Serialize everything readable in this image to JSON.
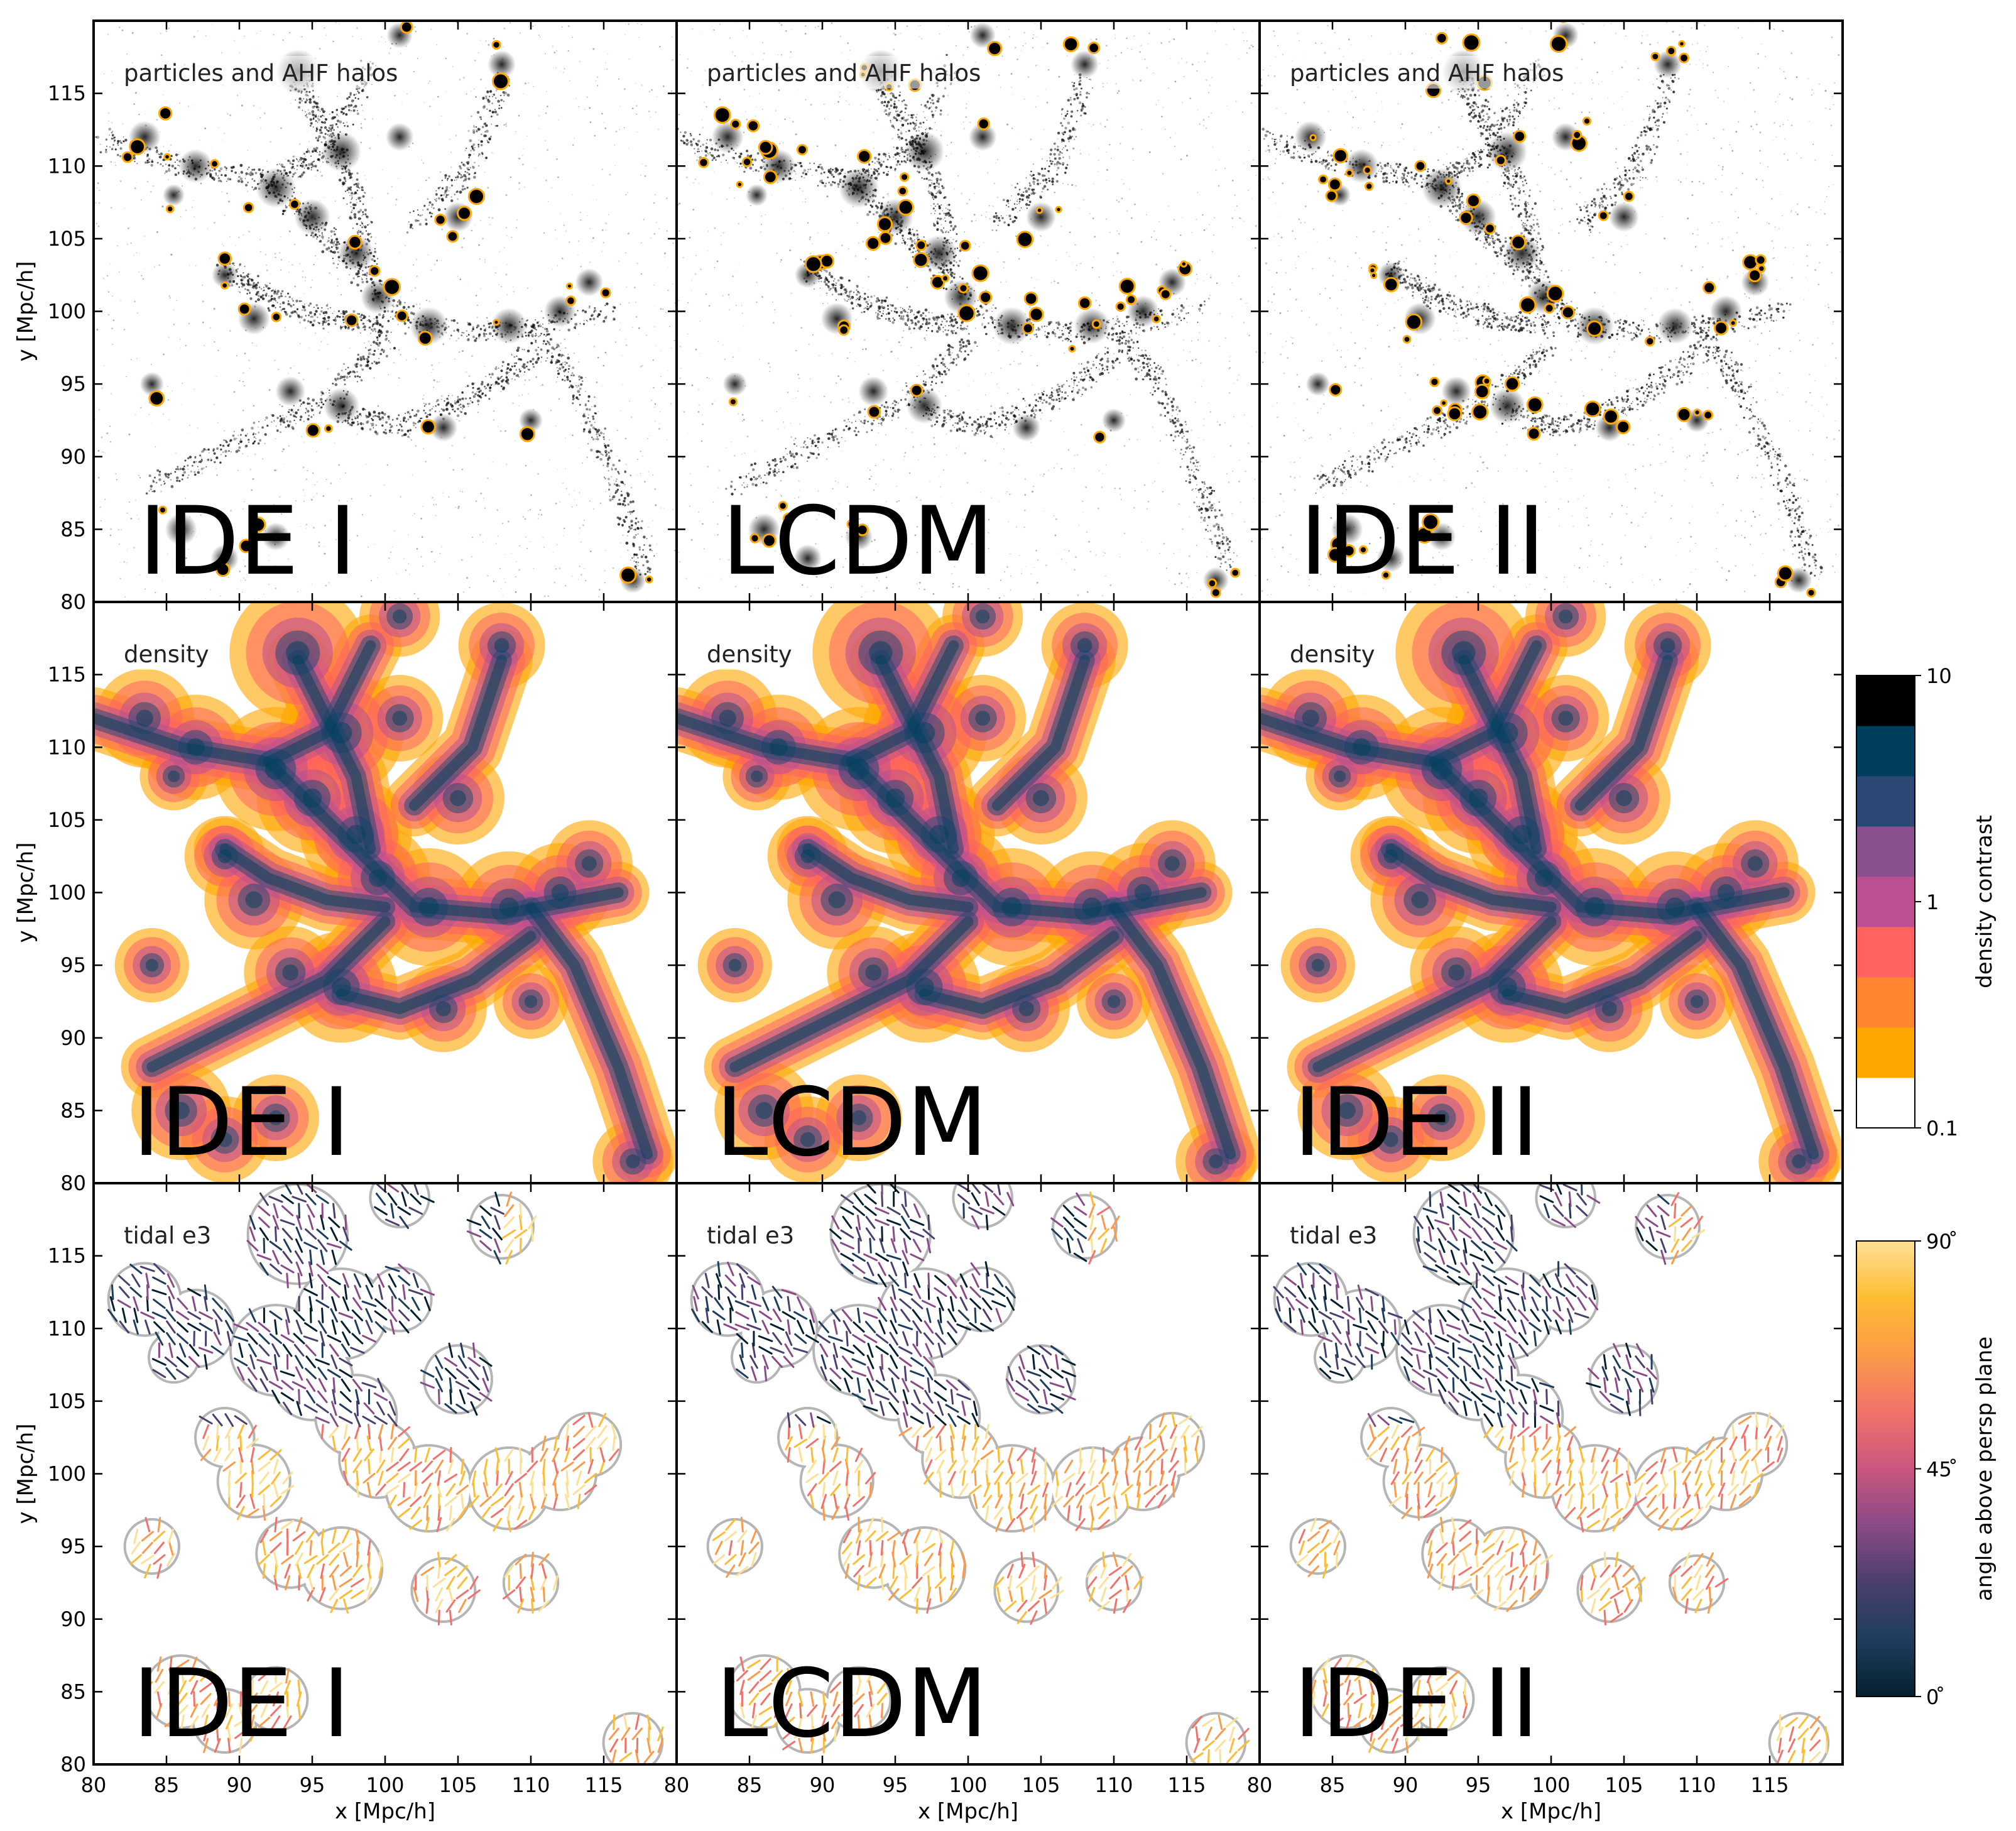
{
  "figure": {
    "columns": [
      {
        "model": "IDE I"
      },
      {
        "model": "LCDM"
      },
      {
        "model": "IDE II"
      }
    ],
    "rows": [
      {
        "panel_label": "particles and AHF halos",
        "kind": "particles"
      },
      {
        "panel_label": "density",
        "kind": "density"
      },
      {
        "panel_label": "tidal e3",
        "kind": "tidal"
      }
    ],
    "axes": {
      "xlabel": "x [Mpc/h]",
      "ylabel": "y [Mpc/h]",
      "range": [
        80,
        120
      ],
      "xticks": [
        "80",
        "85",
        "90",
        "95",
        "100",
        "105",
        "110",
        "115"
      ],
      "yticks": [
        "80",
        "85",
        "90",
        "95",
        "100",
        "105",
        "110",
        "115"
      ]
    },
    "colorbar_density": {
      "label": "density contrast",
      "ticks": [
        "10",
        "1",
        "0.1"
      ],
      "colors": [
        "#ffffff",
        "#ffa600",
        "#ff8531",
        "#ff6361",
        "#bc5090",
        "#8a508f",
        "#2c4875",
        "#003f5c",
        "#000000"
      ]
    },
    "colorbar_angle": {
      "label": "angle above persp plane",
      "ticks": [
        "90$^\\circ$",
        "45$^\\circ$",
        "0$^\\circ$"
      ],
      "tick_text": [
        "90 ̊",
        "45 ̊",
        "0 ̊"
      ],
      "colors": [
        "#04202f",
        "#1e3d5c",
        "#4a3f6e",
        "#8a4a86",
        "#c9577f",
        "#f1726a",
        "#fb9a48",
        "#fdbc33",
        "#fde094"
      ]
    },
    "colors": {
      "halo": "#ffa600",
      "particles": "#000000",
      "contour_edge": "#b5b5b5"
    }
  }
}
